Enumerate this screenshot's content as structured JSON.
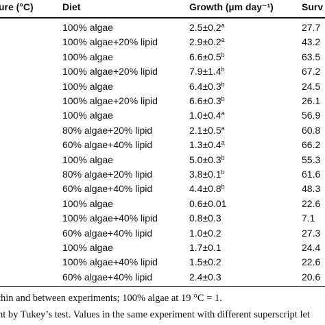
{
  "table": {
    "headers": {
      "temperature": "ure (°C)",
      "diet": "Diet",
      "growth": "Growth (µm day⁻¹)",
      "survival": "Surv"
    },
    "rows": [
      {
        "diet": "100% algae",
        "growth": "2.5±0.2",
        "sig": "a",
        "survival": "27.7"
      },
      {
        "diet": "100% algae+20% lipid",
        "growth": "2.9±0.2",
        "sig": "a",
        "survival": "43.2"
      },
      {
        "diet": "100% algae",
        "growth": "6.6±0.5",
        "sig": "b",
        "survival": "63.5"
      },
      {
        "diet": "100% algae+20% lipid",
        "growth": "7.9±1.4",
        "sig": "b",
        "survival": "67.2"
      },
      {
        "diet": "100% algae",
        "growth": "6.4±0.3",
        "sig": "b",
        "survival": "24.5"
      },
      {
        "diet": "100% algae+20% lipid",
        "growth": "6.6±0.3",
        "sig": "b",
        "survival": "26.1"
      },
      {
        "diet": "100% algae",
        "growth": "1.0±0.4",
        "sig": "a",
        "survival": "56.9"
      },
      {
        "diet": "80% algae+20% lipid",
        "growth": "2.1±0.5",
        "sig": "a",
        "survival": "60.8"
      },
      {
        "diet": "60% algae+40% lipid",
        "growth": "1.3±0.4",
        "sig": "a",
        "survival": "66.2"
      },
      {
        "diet": "100% algae",
        "growth": "5.0±0.3",
        "sig": "b",
        "survival": "55.3"
      },
      {
        "diet": "80% algae+20% lipid",
        "growth": "3.8±0.1",
        "sig": "b",
        "survival": "61.6"
      },
      {
        "diet": "60% algae+40% lipid",
        "growth": "4.4±0.8",
        "sig": "b",
        "survival": "48.3"
      },
      {
        "diet": "100% algae",
        "growth": "0.6±0.01",
        "sig": "",
        "survival": "22.6"
      },
      {
        "diet": "100% algae+40% lipid",
        "growth": "0.8±0.3",
        "sig": "",
        "survival": "7.1"
      },
      {
        "diet": "60% algae+40% lipid",
        "growth": "1.0±0.2",
        "sig": "",
        "survival": "27.3"
      },
      {
        "diet": "100% algae",
        "growth": "1.7±0.1",
        "sig": "",
        "survival": "24.4"
      },
      {
        "diet": "100% algae+40% lipid",
        "growth": "1.5±0.2",
        "sig": "",
        "survival": "22.6"
      },
      {
        "diet": "60% algae+40% lipid",
        "growth": "2.4±0.3",
        "sig": "",
        "survival": "20.6"
      }
    ]
  },
  "footnotes": {
    "line1": "thin and between experiments; 100% algae at 19 °C = 1.",
    "line2": "nt by Tukey’s test. Values in the same experiment with different superscript let"
  }
}
